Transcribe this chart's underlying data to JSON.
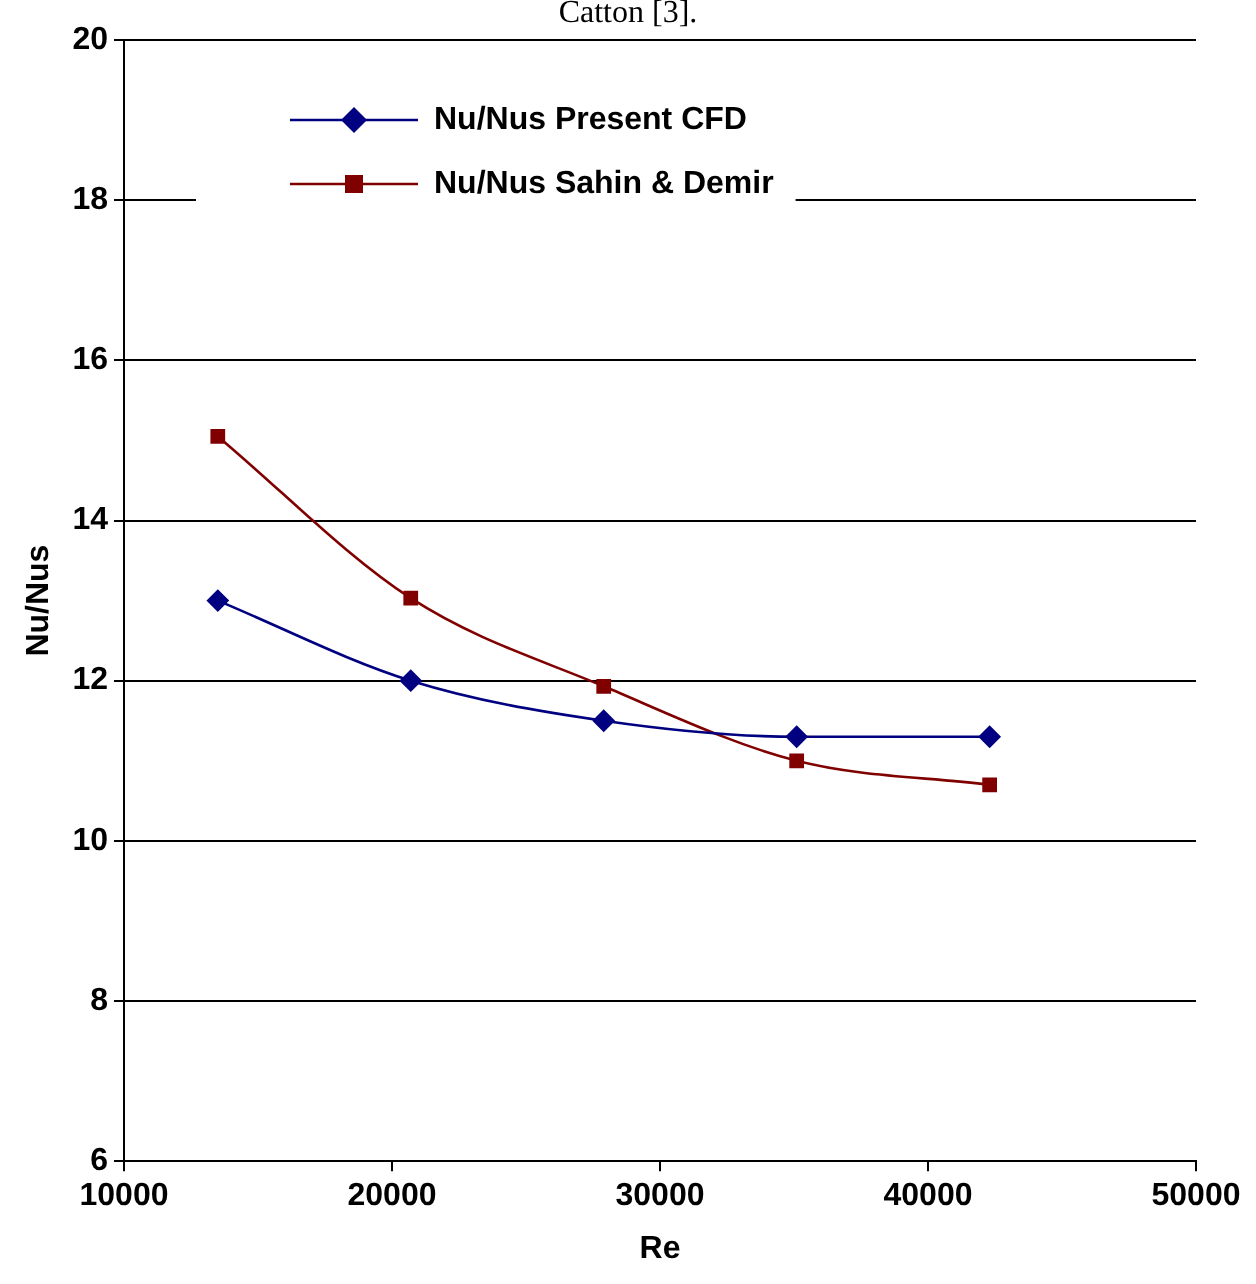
{
  "chart_data": {
    "type": "line",
    "annotations": [
      "Catton [3]."
    ],
    "xlabel": "Re",
    "ylabel": "Nu/Nus",
    "xlim": [
      10000,
      50000
    ],
    "xticks": [
      10000,
      20000,
      30000,
      40000,
      50000
    ],
    "ylim": [
      6,
      20
    ],
    "yticks": [
      6,
      8,
      10,
      12,
      14,
      16,
      18,
      20
    ],
    "grid": "y",
    "legend": "top left",
    "series": [
      {
        "name": "Nu/Nus Present CFD",
        "color": "#000080",
        "marker": "diamond",
        "x": [
          13500,
          20700,
          27900,
          35100,
          42300
        ],
        "values": [
          13.0,
          12.0,
          11.5,
          11.3,
          11.3
        ]
      },
      {
        "name": "Nu/Nus Sahin & Demir",
        "color": "#800000",
        "marker": "square",
        "x": [
          13500,
          20700,
          27900,
          35100,
          42300
        ],
        "values": [
          15.05,
          13.03,
          11.93,
          11.0,
          10.7
        ]
      }
    ]
  }
}
